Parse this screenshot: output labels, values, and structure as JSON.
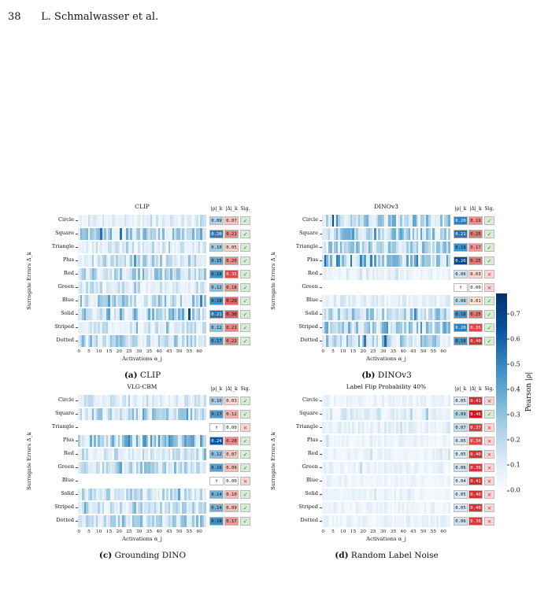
{
  "header": {
    "page_number": "38",
    "running_title": "L. Schmalwasser et al."
  },
  "column_headers": {
    "rho": "|ρ|_k",
    "delta": "|Δ|_k",
    "sig": "Sig."
  },
  "y_axis_label": "Surrogate Errors Δ_k",
  "x_axis_label": "Activations α_j",
  "x_ticks": [
    "0",
    "5",
    "10",
    "15",
    "20",
    "25",
    "30",
    "35",
    "40",
    "45",
    "50",
    "55",
    "60"
  ],
  "colorbar": {
    "label": "Pearson |ρ|",
    "ticks": [
      "0.0",
      "0.1",
      "0.2",
      "0.3",
      "0.4",
      "0.5",
      "0.6",
      "0.7"
    ],
    "max": 0.78
  },
  "glyphs": {
    "check": "✓",
    "cross": "×",
    "dagger": "†"
  },
  "panels": [
    {
      "title": "CLIP",
      "caption_id": "(a)",
      "caption_text": "CLIP",
      "rows": [
        {
          "label": "Circle",
          "rho": "0.09",
          "delta": "0.07",
          "sig": true
        },
        {
          "label": "Square",
          "rho": "0.20",
          "delta": "0.21",
          "sig": true
        },
        {
          "label": "Triangle",
          "rho": "0.10",
          "delta": "0.05",
          "sig": true
        },
        {
          "label": "Plus",
          "rho": "0.15",
          "delta": "0.20",
          "sig": true
        },
        {
          "label": "Red",
          "rho": "0.18",
          "delta": "0.35",
          "sig": true
        },
        {
          "label": "Green",
          "rho": "0.12",
          "delta": "0.18",
          "sig": true
        },
        {
          "label": "Blue",
          "rho": "0.18",
          "delta": "0.29",
          "sig": true
        },
        {
          "label": "Solid",
          "rho": "0.21",
          "delta": "0.30",
          "sig": true
        },
        {
          "label": "Striped",
          "rho": "0.12",
          "delta": "0.21",
          "sig": true
        },
        {
          "label": "Dotted",
          "rho": "0.17",
          "delta": "0.22",
          "sig": true
        }
      ]
    },
    {
      "title": "DINOv3",
      "caption_id": "(b)",
      "caption_text": "DINOv3",
      "rows": [
        {
          "label": "Circle",
          "rho": "0.20",
          "delta": "0.19",
          "sig": true
        },
        {
          "label": "Square",
          "rho": "0.21",
          "delta": "0.25",
          "sig": true
        },
        {
          "label": "Triangle",
          "rho": "0.18",
          "delta": "0.17",
          "sig": true
        },
        {
          "label": "Plus",
          "rho": "0.26",
          "delta": "0.25",
          "sig": true
        },
        {
          "label": "Red",
          "rho": "0.06",
          "delta": "0.03",
          "sig": false
        },
        {
          "label": "Green",
          "rho": "†",
          "delta": "0.00",
          "sig": false,
          "empty": true
        },
        {
          "label": "Blue",
          "rho": "0.08",
          "delta": "0.01",
          "sig": true
        },
        {
          "label": "Solid",
          "rho": "0.18",
          "delta": "0.25",
          "sig": true
        },
        {
          "label": "Striped",
          "rho": "0.20",
          "delta": "0.35",
          "sig": true
        },
        {
          "label": "Dotted",
          "rho": "0.18",
          "delta": "0.40",
          "sig": true
        }
      ]
    },
    {
      "title": "VLG-CBM",
      "caption_id": "(c)",
      "caption_text": "Grounding DINO",
      "rows": [
        {
          "label": "Circle",
          "rho": "0.10",
          "delta": "0.03",
          "sig": true
        },
        {
          "label": "Square",
          "rho": "0.17",
          "delta": "0.12",
          "sig": true
        },
        {
          "label": "Triangle",
          "rho": "†",
          "delta": "0.00",
          "sig": false,
          "empty": true
        },
        {
          "label": "Plus",
          "rho": "0.24",
          "delta": "0.20",
          "sig": true
        },
        {
          "label": "Red",
          "rho": "0.12",
          "delta": "0.07",
          "sig": true
        },
        {
          "label": "Green",
          "rho": "0.16",
          "delta": "0.09",
          "sig": true
        },
        {
          "label": "Blue",
          "rho": "†",
          "delta": "0.00",
          "sig": false,
          "empty": true
        },
        {
          "label": "Solid",
          "rho": "0.14",
          "delta": "0.10",
          "sig": true
        },
        {
          "label": "Striped",
          "rho": "0.14",
          "delta": "0.09",
          "sig": true
        },
        {
          "label": "Dotted",
          "rho": "0.18",
          "delta": "0.17",
          "sig": true
        }
      ]
    },
    {
      "title": "Label Flip Probability 40%",
      "caption_id": "(d)",
      "caption_text": "Random Label Noise",
      "rows": [
        {
          "label": "Circle",
          "rho": "0.05",
          "delta": "0.41",
          "sig": false
        },
        {
          "label": "Square",
          "rho": "0.09",
          "delta": "0.46",
          "sig": true
        },
        {
          "label": "Triangle",
          "rho": "0.07",
          "delta": "0.37",
          "sig": false
        },
        {
          "label": "Plus",
          "rho": "0.05",
          "delta": "0.34",
          "sig": false
        },
        {
          "label": "Red",
          "rho": "0.05",
          "delta": "0.40",
          "sig": false
        },
        {
          "label": "Green",
          "rho": "0.06",
          "delta": "0.39",
          "sig": false
        },
        {
          "label": "Blue",
          "rho": "0.04",
          "delta": "0.41",
          "sig": false
        },
        {
          "label": "Solid",
          "rho": "0.05",
          "delta": "0.40",
          "sig": false
        },
        {
          "label": "Striped",
          "rho": "0.05",
          "delta": "0.40",
          "sig": false
        },
        {
          "label": "Dotted",
          "rho": "0.06",
          "delta": "0.38",
          "sig": false
        }
      ]
    }
  ],
  "chart_data": {
    "type": "heatmap",
    "x": "activations 0-63",
    "series": [
      {
        "name": "CLIP",
        "categories": [
          "Circle",
          "Square",
          "Triangle",
          "Plus",
          "Red",
          "Green",
          "Blue",
          "Solid",
          "Striped",
          "Dotted"
        ],
        "mean_abs_rho": [
          0.09,
          0.2,
          0.1,
          0.15,
          0.18,
          0.12,
          0.18,
          0.21,
          0.12,
          0.17
        ],
        "abs_delta": [
          0.07,
          0.21,
          0.05,
          0.2,
          0.35,
          0.18,
          0.29,
          0.3,
          0.21,
          0.22
        ]
      },
      {
        "name": "DINOv3",
        "categories": [
          "Circle",
          "Square",
          "Triangle",
          "Plus",
          "Red",
          "Green",
          "Blue",
          "Solid",
          "Striped",
          "Dotted"
        ],
        "mean_abs_rho": [
          0.2,
          0.21,
          0.18,
          0.26,
          0.06,
          null,
          0.08,
          0.18,
          0.2,
          0.18
        ],
        "abs_delta": [
          0.19,
          0.25,
          0.17,
          0.25,
          0.03,
          0.0,
          0.01,
          0.25,
          0.35,
          0.4
        ]
      },
      {
        "name": "VLG-CBM",
        "categories": [
          "Circle",
          "Square",
          "Triangle",
          "Plus",
          "Red",
          "Green",
          "Blue",
          "Solid",
          "Striped",
          "Dotted"
        ],
        "mean_abs_rho": [
          0.1,
          0.17,
          null,
          0.24,
          0.12,
          0.16,
          null,
          0.14,
          0.14,
          0.18
        ],
        "abs_delta": [
          0.03,
          0.12,
          0.0,
          0.2,
          0.07,
          0.09,
          0.0,
          0.1,
          0.09,
          0.17
        ]
      },
      {
        "name": "Label Flip Probability 40%",
        "categories": [
          "Circle",
          "Square",
          "Triangle",
          "Plus",
          "Red",
          "Green",
          "Blue",
          "Solid",
          "Striped",
          "Dotted"
        ],
        "mean_abs_rho": [
          0.05,
          0.09,
          0.07,
          0.05,
          0.05,
          0.06,
          0.04,
          0.05,
          0.05,
          0.06
        ],
        "abs_delta": [
          0.41,
          0.46,
          0.37,
          0.34,
          0.4,
          0.39,
          0.41,
          0.4,
          0.4,
          0.38
        ]
      }
    ],
    "colorbar_range": [
      0.0,
      0.78
    ]
  }
}
